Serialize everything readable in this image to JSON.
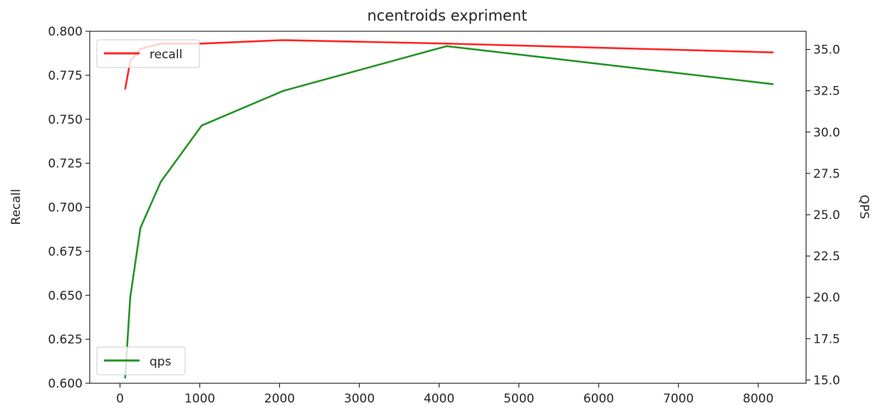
{
  "chart_data": {
    "type": "line",
    "title": "ncentroids expriment",
    "xlabel": "",
    "xlim": [
      -380,
      8600
    ],
    "xticks": [
      0,
      1000,
      2000,
      3000,
      4000,
      5000,
      6000,
      7000,
      8000
    ],
    "left_axis": {
      "label": "Recall",
      "ylim": [
        0.6,
        0.8
      ],
      "ticks": [
        "0.600",
        "0.625",
        "0.650",
        "0.675",
        "0.700",
        "0.725",
        "0.750",
        "0.775",
        "0.800"
      ]
    },
    "right_axis": {
      "label": "QPS",
      "ylim": [
        14.8,
        36.1
      ],
      "ticks": [
        "15.0",
        "17.5",
        "20.0",
        "22.5",
        "25.0",
        "27.5",
        "30.0",
        "32.5",
        "35.0"
      ]
    },
    "series": [
      {
        "name": "recall",
        "axis": "left",
        "color": "#ff0000",
        "x": [
          64,
          128,
          256,
          512,
          1024,
          2048,
          4096,
          8192
        ],
        "y": [
          0.767,
          0.783,
          0.79,
          0.793,
          0.793,
          0.795,
          0.793,
          0.788
        ]
      },
      {
        "name": "qps",
        "axis": "right",
        "color": "#008000",
        "x": [
          64,
          128,
          256,
          512,
          1024,
          2048,
          4096,
          8192
        ],
        "y": [
          15.1,
          20.0,
          24.2,
          27.0,
          30.4,
          32.5,
          35.2,
          32.9
        ]
      }
    ],
    "legends": [
      {
        "series": "recall",
        "placement": "upper-left"
      },
      {
        "series": "qps",
        "placement": "lower-left"
      }
    ],
    "grid": false
  }
}
